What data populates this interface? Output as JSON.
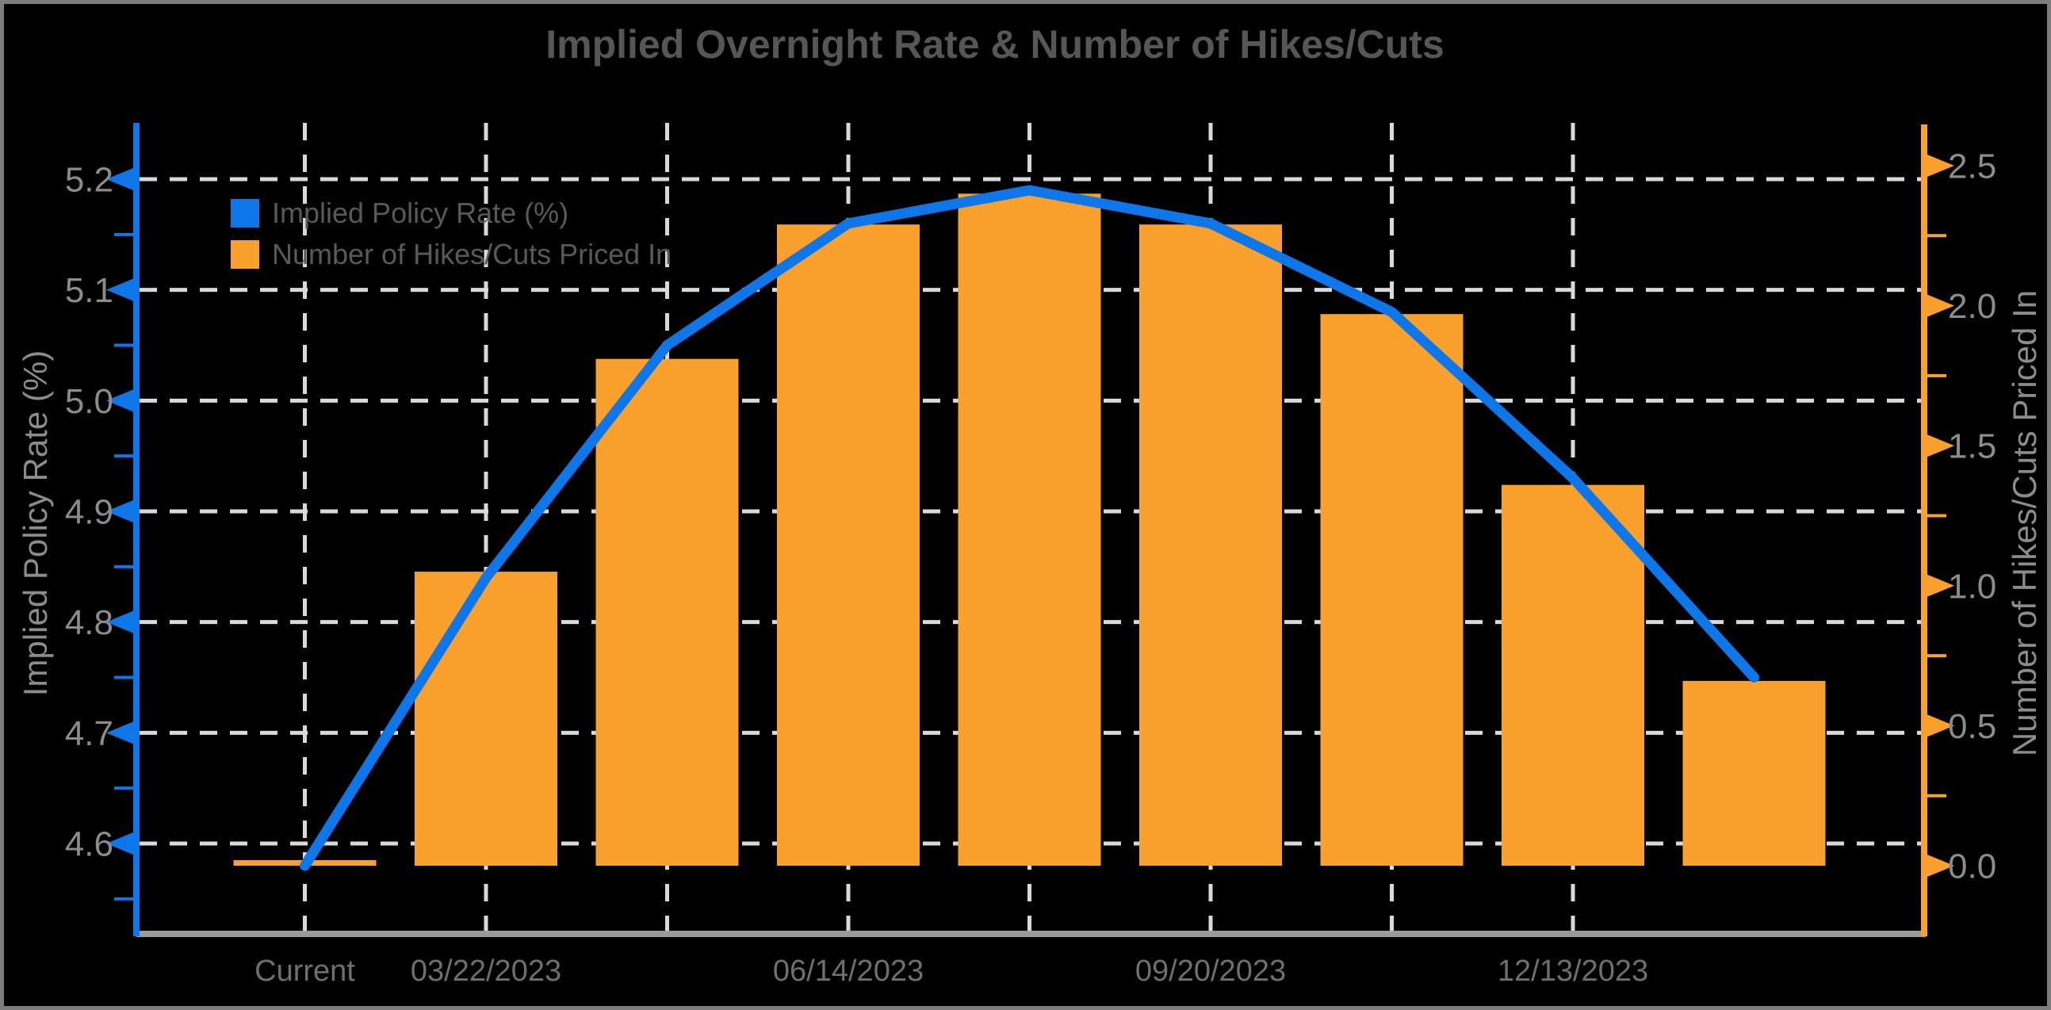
{
  "window": {
    "background": "#000000",
    "frame_color": "#7d7d7d"
  },
  "title": "Implied Overnight Rate & Number of Hikes/Cuts",
  "legend": {
    "items": [
      {
        "label": "Implied Policy Rate (%)",
        "color": "#0d76e9"
      },
      {
        "label": "Number of Hikes/Cuts Priced In",
        "color": "#faa12d"
      }
    ]
  },
  "chart_data": {
    "type": "bar+line",
    "title": "Implied Overnight Rate & Number of Hikes/Cuts",
    "num_categories": 9,
    "x_tick_labels": [
      "Current",
      "03/22/2023",
      "",
      "06/14/2023",
      "",
      "09/20/2023",
      "",
      "12/13/2023",
      ""
    ],
    "series": [
      {
        "name": "Implied Policy Rate (%)",
        "type": "line",
        "axis": "left",
        "color": "#0d76e9",
        "values": [
          4.58,
          4.84,
          5.05,
          5.16,
          5.19,
          5.16,
          5.08,
          4.93,
          4.75
        ]
      },
      {
        "name": "Number of Hikes/Cuts Priced In",
        "type": "bar",
        "axis": "right",
        "color": "#faa12d",
        "values": [
          0.02,
          1.05,
          1.81,
          2.29,
          2.4,
          2.29,
          1.97,
          1.36,
          0.66
        ]
      }
    ],
    "left_axis": {
      "label": "Implied Policy Rate (%)",
      "axis_color": "#0d76e9",
      "tick_label_color": "#8c8c8c",
      "ticks": [
        4.6,
        4.7,
        4.8,
        4.9,
        5.0,
        5.1,
        5.2
      ],
      "tick_labels": [
        "4.6",
        "4.7",
        "4.8",
        "4.9",
        "5.0",
        "5.1",
        "5.2"
      ],
      "minor_ticks": [
        4.55,
        4.65,
        4.75,
        4.85,
        4.95,
        5.05,
        5.15
      ],
      "range": [
        4.52,
        5.25
      ]
    },
    "right_axis": {
      "label": "Number of Hikes/Cuts Priced In",
      "axis_color": "#faa12d",
      "tick_label_color": "#8c8c8c",
      "ticks": [
        0.0,
        0.5,
        1.0,
        1.5,
        2.0,
        2.5
      ],
      "tick_labels": [
        "0.0",
        "0.5",
        "1.0",
        "1.5",
        "2.0",
        "2.5"
      ],
      "minor_ticks": [
        0.25,
        0.75,
        1.25,
        1.75,
        2.25
      ],
      "range": [
        -0.24,
        2.65
      ]
    },
    "bottom_axis_color": "#9a9a9a",
    "x_tick_label_color": "#6f6f6f",
    "gridline_color": "#d9d9d9",
    "grid": {
      "horizontal_at_left_ticks": true,
      "vertical_at_category_indices": [
        0,
        1,
        2,
        3,
        4,
        5,
        6,
        7
      ]
    },
    "legend_position": "upper-left-inside"
  }
}
